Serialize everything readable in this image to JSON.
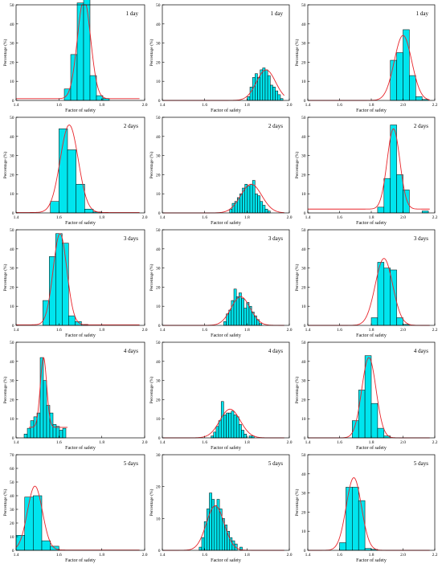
{
  "figure": {
    "bar_color": "#00e5ee",
    "bar_stroke": "#000000",
    "curve_color": "#e8242a",
    "axis_color": "#000000",
    "ylabel": "Percentage (%)",
    "xlabel": "Factor of safety"
  },
  "chart_data": [
    {
      "type": "bar",
      "title": "1 day",
      "xlim": [
        1.4,
        2.0
      ],
      "ylim": [
        0,
        50
      ],
      "x_ticks": [
        "1.4",
        "1.6",
        "1.8",
        "2.0"
      ],
      "y_ticks": [
        "0",
        "10",
        "20",
        "30",
        "40",
        "50"
      ],
      "bin_width": 0.03,
      "bins": [
        [
          1.64,
          6
        ],
        [
          1.67,
          24
        ],
        [
          1.7,
          51
        ],
        [
          1.73,
          53
        ],
        [
          1.76,
          13
        ],
        [
          1.79,
          2.5
        ],
        [
          1.82,
          1
        ]
      ],
      "curve": {
        "mean": 1.717,
        "sd": 0.031,
        "peak": 53,
        "baseline": 0.9
      }
    },
    {
      "type": "bar",
      "title": "1 day",
      "xlim": [
        1.4,
        2.0
      ],
      "ylim": [
        0,
        50
      ],
      "x_ticks": [
        "1.4",
        "1.6",
        "1.8",
        "2.0"
      ],
      "y_ticks": [
        "0",
        "10",
        "20",
        "30",
        "40",
        "50"
      ],
      "bin_width": 0.012,
      "bins": [
        [
          1.808,
          2
        ],
        [
          1.82,
          7
        ],
        [
          1.832,
          12
        ],
        [
          1.844,
          14
        ],
        [
          1.856,
          12
        ],
        [
          1.868,
          16
        ],
        [
          1.88,
          17
        ],
        [
          1.892,
          16
        ],
        [
          1.904,
          13
        ],
        [
          1.916,
          8
        ],
        [
          1.928,
          7
        ],
        [
          1.94,
          5
        ],
        [
          1.952,
          3
        ],
        [
          1.964,
          1
        ]
      ],
      "curve": {
        "mean": 1.89,
        "sd": 0.045,
        "peak": 16,
        "baseline": 0
      }
    },
    {
      "type": "bar",
      "title": "1 day",
      "xlim": [
        1.4,
        2.2
      ],
      "ylim": [
        0,
        50
      ],
      "x_ticks": [
        "1.4",
        "1.6",
        "1.8",
        "2.0",
        "2.2"
      ],
      "y_ticks": [
        "0",
        "10",
        "20",
        "30",
        "40",
        "50"
      ],
      "bin_width": 0.04,
      "bins": [
        [
          1.94,
          21
        ],
        [
          1.98,
          25
        ],
        [
          2.02,
          37
        ],
        [
          2.06,
          13
        ],
        [
          2.1,
          2
        ],
        [
          2.14,
          0.5
        ]
      ],
      "curve": {
        "mean": 2.0,
        "sd": 0.055,
        "peak": 34,
        "baseline": 0
      }
    },
    {
      "type": "bar",
      "title": "2 days",
      "xlim": [
        1.4,
        2.0
      ],
      "ylim": [
        0,
        50
      ],
      "x_ticks": [
        "1.4",
        "1.6",
        "1.8",
        "2.0"
      ],
      "y_ticks": [
        "0",
        "10",
        "20",
        "30",
        "40",
        "50"
      ],
      "bin_width": 0.04,
      "bins": [
        [
          1.58,
          6
        ],
        [
          1.62,
          44
        ],
        [
          1.66,
          33
        ],
        [
          1.7,
          15
        ],
        [
          1.74,
          2
        ],
        [
          1.78,
          0.5
        ]
      ],
      "curve": {
        "mean": 1.648,
        "sd": 0.042,
        "peak": 46,
        "baseline": 0.2
      }
    },
    {
      "type": "bar",
      "title": "2 days",
      "xlim": [
        1.4,
        2.0
      ],
      "ylim": [
        0,
        50
      ],
      "x_ticks": [
        "1.4",
        "1.6",
        "1.8",
        "2.0"
      ],
      "y_ticks": [
        "0",
        "10",
        "20",
        "30",
        "40",
        "50"
      ],
      "bin_width": 0.012,
      "bins": [
        [
          1.724,
          2
        ],
        [
          1.736,
          5
        ],
        [
          1.748,
          6
        ],
        [
          1.76,
          8
        ],
        [
          1.772,
          10
        ],
        [
          1.784,
          13
        ],
        [
          1.796,
          15
        ],
        [
          1.808,
          14
        ],
        [
          1.82,
          15
        ],
        [
          1.832,
          17
        ],
        [
          1.844,
          10
        ],
        [
          1.856,
          9
        ],
        [
          1.868,
          6
        ],
        [
          1.88,
          4
        ],
        [
          1.892,
          2
        ],
        [
          1.904,
          1
        ]
      ],
      "curve": {
        "mean": 1.82,
        "sd": 0.05,
        "peak": 15,
        "baseline": 0
      }
    },
    {
      "type": "bar",
      "title": "2 days",
      "xlim": [
        1.4,
        2.2
      ],
      "ylim": [
        0,
        50
      ],
      "x_ticks": [
        "1.4",
        "1.6",
        "1.8",
        "2.0",
        "2.2"
      ],
      "y_ticks": [
        "0",
        "10",
        "20",
        "30",
        "40",
        "50"
      ],
      "bin_width": 0.04,
      "bins": [
        [
          1.86,
          3
        ],
        [
          1.9,
          18
        ],
        [
          1.94,
          46
        ],
        [
          1.98,
          20
        ],
        [
          2.02,
          12
        ],
        [
          2.14,
          1
        ]
      ],
      "curve": {
        "mean": 1.94,
        "sd": 0.04,
        "peak": 44,
        "baseline": 2
      }
    },
    {
      "type": "bar",
      "title": "3 days",
      "xlim": [
        1.4,
        2.0
      ],
      "ylim": [
        0,
        50
      ],
      "x_ticks": [
        "1.4",
        "1.6",
        "1.8",
        "2.0"
      ],
      "y_ticks": [
        "0",
        "10",
        "20",
        "30",
        "40",
        "50"
      ],
      "bin_width": 0.03,
      "bins": [
        [
          1.54,
          13
        ],
        [
          1.57,
          36
        ],
        [
          1.6,
          48
        ],
        [
          1.63,
          43
        ],
        [
          1.66,
          5
        ],
        [
          1.69,
          2
        ],
        [
          1.72,
          0.5
        ]
      ],
      "curve": {
        "mean": 1.605,
        "sd": 0.032,
        "peak": 48,
        "baseline": 0.3
      }
    },
    {
      "type": "bar",
      "title": "3 days",
      "xlim": [
        1.4,
        2.0
      ],
      "ylim": [
        0,
        50
      ],
      "x_ticks": [
        "1.4",
        "1.6",
        "1.8",
        "2.0"
      ],
      "y_ticks": [
        "0",
        "10",
        "20",
        "30",
        "40",
        "50"
      ],
      "bin_width": 0.012,
      "bins": [
        [
          1.696,
          2
        ],
        [
          1.708,
          6
        ],
        [
          1.72,
          8
        ],
        [
          1.732,
          13
        ],
        [
          1.744,
          19
        ],
        [
          1.756,
          15
        ],
        [
          1.768,
          17
        ],
        [
          1.78,
          14
        ],
        [
          1.792,
          9
        ],
        [
          1.804,
          12
        ],
        [
          1.816,
          10
        ],
        [
          1.828,
          7
        ],
        [
          1.84,
          5
        ],
        [
          1.852,
          3
        ],
        [
          1.864,
          1
        ]
      ],
      "curve": {
        "mean": 1.77,
        "sd": 0.045,
        "peak": 15,
        "baseline": 0
      }
    },
    {
      "type": "bar",
      "title": "3 days",
      "xlim": [
        1.4,
        2.2
      ],
      "ylim": [
        0,
        50
      ],
      "x_ticks": [
        "1.4",
        "1.6",
        "1.8",
        "2.0",
        "2.2"
      ],
      "y_ticks": [
        "0",
        "10",
        "20",
        "30",
        "40",
        "50"
      ],
      "bin_width": 0.04,
      "bins": [
        [
          1.82,
          4
        ],
        [
          1.86,
          33
        ],
        [
          1.9,
          30
        ],
        [
          1.94,
          29
        ],
        [
          1.98,
          4
        ],
        [
          2.02,
          0.5
        ]
      ],
      "curve": {
        "mean": 1.88,
        "sd": 0.055,
        "peak": 35,
        "baseline": 0
      }
    },
    {
      "type": "bar",
      "title": "4 days",
      "xlim": [
        1.4,
        2.0
      ],
      "ylim": [
        0,
        50
      ],
      "x_ticks": [
        "1.4",
        "1.6",
        "1.8",
        "2.0"
      ],
      "y_ticks": [
        "0",
        "10",
        "20",
        "30",
        "40",
        "50"
      ],
      "bin_width": 0.015,
      "bins": [
        [
          1.445,
          2
        ],
        [
          1.46,
          5
        ],
        [
          1.475,
          9
        ],
        [
          1.49,
          11
        ],
        [
          1.505,
          13
        ],
        [
          1.52,
          42
        ],
        [
          1.535,
          30
        ],
        [
          1.55,
          17
        ],
        [
          1.565,
          13
        ],
        [
          1.58,
          7
        ],
        [
          1.595,
          6
        ],
        [
          1.61,
          4
        ],
        [
          1.625,
          5
        ]
      ],
      "curve": {
        "mean": 1.528,
        "sd": 0.015,
        "peak": 42,
        "baseline": 5.5,
        "xmin": 1.46,
        "xmax": 1.64
      }
    },
    {
      "type": "bar",
      "title": "4 days",
      "xlim": [
        1.4,
        2.0
      ],
      "ylim": [
        0,
        50
      ],
      "x_ticks": [
        "1.4",
        "1.6",
        "1.8",
        "2.0"
      ],
      "y_ticks": [
        "0",
        "10",
        "20",
        "30",
        "40",
        "50"
      ],
      "bin_width": 0.012,
      "bins": [
        [
          1.636,
          1
        ],
        [
          1.648,
          3
        ],
        [
          1.66,
          6
        ],
        [
          1.672,
          9
        ],
        [
          1.684,
          19
        ],
        [
          1.696,
          12
        ],
        [
          1.708,
          13
        ],
        [
          1.72,
          13
        ],
        [
          1.732,
          14
        ],
        [
          1.744,
          12
        ],
        [
          1.756,
          11
        ],
        [
          1.768,
          7
        ],
        [
          1.78,
          4
        ],
        [
          1.792,
          2
        ],
        [
          1.816,
          1
        ],
        [
          1.828,
          1
        ]
      ],
      "curve": {
        "mean": 1.72,
        "sd": 0.048,
        "peak": 15,
        "baseline": 0
      }
    },
    {
      "type": "bar",
      "title": "4 days",
      "xlim": [
        1.4,
        2.2
      ],
      "ylim": [
        0,
        50
      ],
      "x_ticks": [
        "1.4",
        "1.6",
        "1.8",
        "2.0",
        "2.2"
      ],
      "y_ticks": [
        "0",
        "10",
        "20",
        "30",
        "40",
        "50"
      ],
      "bin_width": 0.04,
      "bins": [
        [
          1.7,
          9
        ],
        [
          1.74,
          25
        ],
        [
          1.78,
          43
        ],
        [
          1.82,
          18
        ],
        [
          1.86,
          5
        ],
        [
          1.9,
          1
        ]
      ],
      "curve": {
        "mean": 1.785,
        "sd": 0.045,
        "peak": 42,
        "baseline": 0
      }
    },
    {
      "type": "bar",
      "title": "5 days",
      "xlim": [
        1.4,
        2.0
      ],
      "ylim": [
        0,
        70
      ],
      "x_ticks": [
        "1.4",
        "1.6",
        "1.8",
        "2.0"
      ],
      "y_ticks": [
        "0",
        "10",
        "20",
        "30",
        "40",
        "50",
        "60",
        "70"
      ],
      "bin_width": 0.04,
      "bins": [
        [
          1.42,
          11
        ],
        [
          1.46,
          39
        ],
        [
          1.5,
          40
        ],
        [
          1.54,
          7
        ],
        [
          1.58,
          3
        ]
      ],
      "curve": {
        "mean": 1.488,
        "sd": 0.035,
        "peak": 47,
        "baseline": 0.2
      }
    },
    {
      "type": "bar",
      "title": "5 days",
      "xlim": [
        1.4,
        2.0
      ],
      "ylim": [
        0,
        30
      ],
      "x_ticks": [
        "1.4",
        "1.6",
        "1.8",
        "2.0"
      ],
      "y_ticks": [
        "0",
        "10",
        "20",
        "30"
      ],
      "bin_width": 0.012,
      "bins": [
        [
          1.58,
          1
        ],
        [
          1.592,
          4
        ],
        [
          1.604,
          9
        ],
        [
          1.616,
          13
        ],
        [
          1.628,
          18
        ],
        [
          1.64,
          16
        ],
        [
          1.652,
          14
        ],
        [
          1.664,
          16
        ],
        [
          1.676,
          13
        ],
        [
          1.688,
          10
        ],
        [
          1.7,
          8
        ],
        [
          1.712,
          6
        ],
        [
          1.724,
          4
        ],
        [
          1.736,
          3
        ],
        [
          1.748,
          2
        ],
        [
          1.772,
          1
        ]
      ],
      "curve": {
        "mean": 1.65,
        "sd": 0.042,
        "peak": 14,
        "baseline": 0
      }
    },
    {
      "type": "bar",
      "title": "5 days",
      "xlim": [
        1.4,
        2.2
      ],
      "ylim": [
        0,
        50
      ],
      "x_ticks": [
        "1.4",
        "1.6",
        "1.8",
        "2.0",
        "2.2"
      ],
      "y_ticks": [
        "0",
        "10",
        "20",
        "30",
        "40",
        "50"
      ],
      "bin_width": 0.04,
      "bins": [
        [
          1.62,
          4
        ],
        [
          1.66,
          33
        ],
        [
          1.7,
          33
        ],
        [
          1.74,
          26
        ],
        [
          1.78,
          1
        ],
        [
          1.82,
          0.5
        ]
      ],
      "curve": {
        "mean": 1.69,
        "sd": 0.048,
        "peak": 38,
        "baseline": 0
      }
    }
  ]
}
